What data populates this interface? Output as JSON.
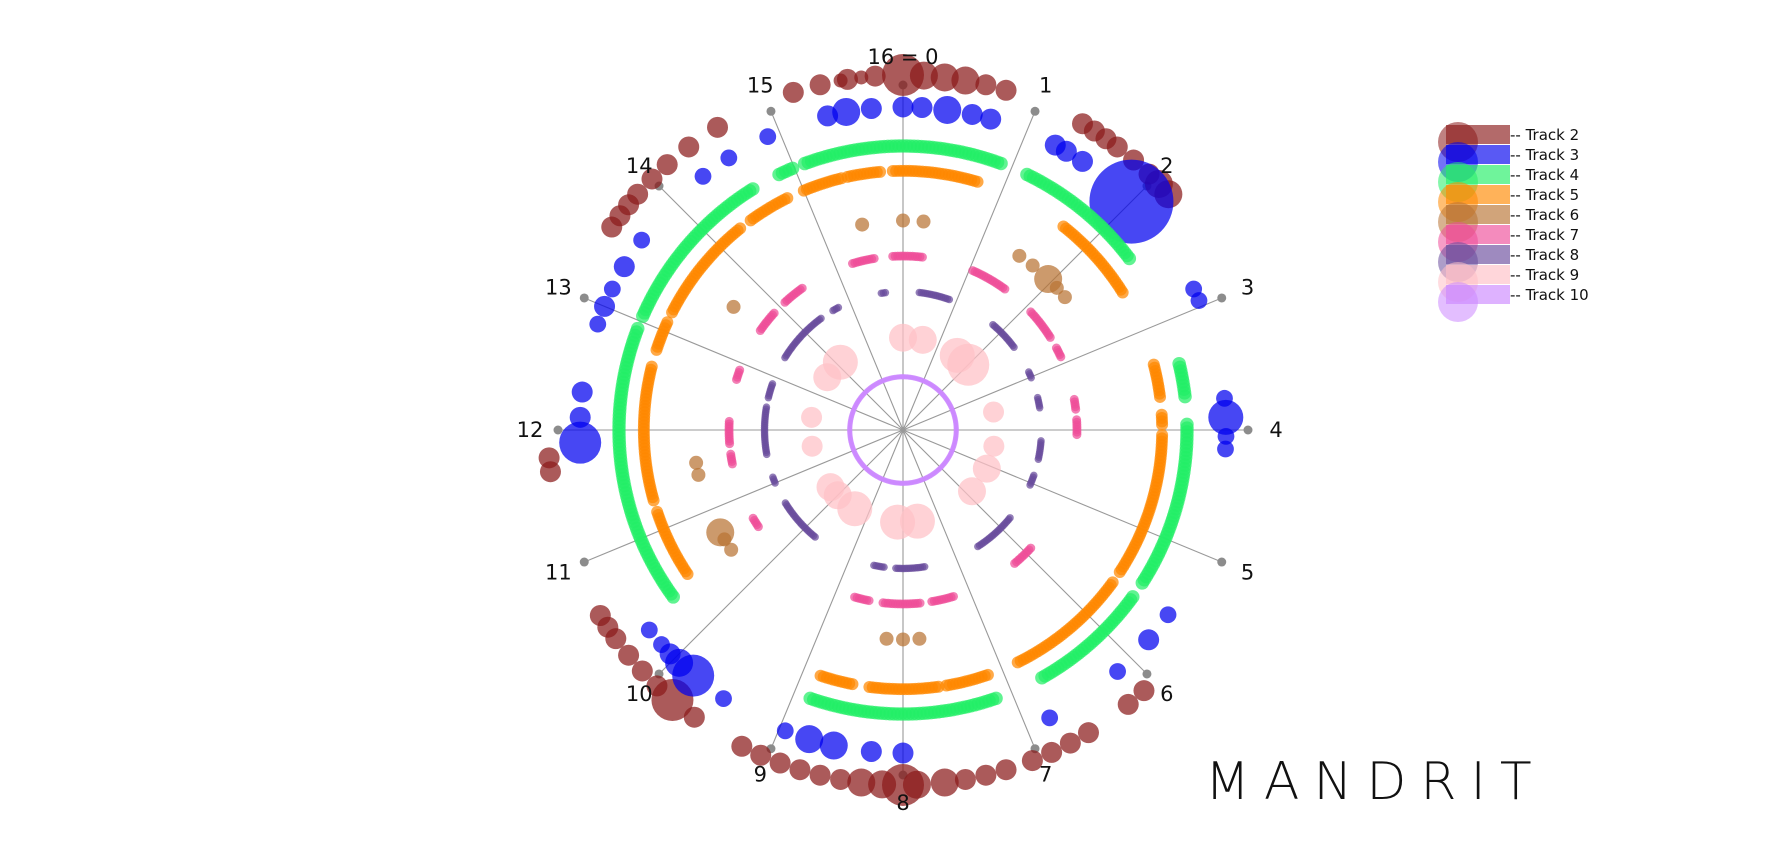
{
  "brand": "MANDRIT",
  "colors": {
    "background": "#ffffff",
    "spoke": "#999999",
    "spoke_dot": "#8c8c8c"
  },
  "chart_data": {
    "type": "scatter",
    "coordinate_system": "polar",
    "divisions": 16,
    "spoke_labels": [
      "16 = 0",
      "1",
      "2",
      "3",
      "4",
      "5",
      "6",
      "7",
      "8",
      "9",
      "10",
      "11",
      "12",
      "13",
      "14",
      "15"
    ],
    "legend_placement": "top-right",
    "series": [
      {
        "name": "-- Track 2",
        "color": "#8b1a1a",
        "ring": 10.0,
        "points": [
          [
            0,
            3
          ],
          [
            0.15,
            2
          ],
          [
            0.3,
            2
          ],
          [
            0.45,
            2
          ],
          [
            0.6,
            1.5
          ],
          [
            0.75,
            1.5
          ],
          [
            15.2,
            1.5
          ],
          [
            15.4,
            1.5
          ],
          [
            15.6,
            1.5
          ],
          [
            15.8,
            1.5
          ],
          [
            15.55,
            1
          ],
          [
            15.7,
            1
          ],
          [
            1.35,
            1.5
          ],
          [
            1.45,
            1.5
          ],
          [
            1.55,
            1.5
          ],
          [
            1.65,
            1.5
          ],
          [
            1.8,
            1.5
          ],
          [
            1.95,
            1.5
          ],
          [
            2.05,
            2
          ],
          [
            2.15,
            2
          ],
          [
            13.55,
            1.5
          ],
          [
            13.65,
            1.5
          ],
          [
            13.75,
            1.5
          ],
          [
            13.85,
            1.5
          ],
          [
            14.0,
            1.5
          ],
          [
            14.15,
            1.5
          ],
          [
            14.35,
            1.5
          ],
          [
            14.6,
            1.5
          ],
          [
            11.7,
            1.5
          ],
          [
            11.8,
            1.5
          ],
          [
            9.6,
            1.5
          ],
          [
            9.8,
            3
          ],
          [
            9.95,
            1.5
          ],
          [
            10.1,
            1.5
          ],
          [
            10.25,
            1.5
          ],
          [
            10.4,
            1.5
          ],
          [
            10.5,
            1.5
          ],
          [
            10.6,
            1.5
          ],
          [
            8,
            3
          ],
          [
            8.15,
            2
          ],
          [
            8.3,
            2
          ],
          [
            8.45,
            1.5
          ],
          [
            8.6,
            1.5
          ],
          [
            8.75,
            1.5
          ],
          [
            8.9,
            1.5
          ],
          [
            9.05,
            1.5
          ],
          [
            9.2,
            1.5
          ],
          [
            7.9,
            2
          ],
          [
            7.7,
            2
          ],
          [
            7.55,
            1.5
          ],
          [
            7.4,
            1.5
          ],
          [
            7.25,
            1.5
          ],
          [
            6.6,
            1.5
          ],
          [
            6.75,
            1.5
          ],
          [
            6.9,
            1.5
          ],
          [
            7.05,
            1.5
          ],
          [
            6.1,
            1.5
          ],
          [
            6.25,
            1.5
          ]
        ]
      },
      {
        "name": "-- Track 3",
        "color": "#0000ee",
        "ring": 9.1,
        "points": [
          [
            0,
            1.5
          ],
          [
            0.15,
            1.5
          ],
          [
            0.35,
            2
          ],
          [
            0.55,
            1.5
          ],
          [
            0.7,
            1.5
          ],
          [
            15.75,
            1.5
          ],
          [
            15.55,
            2
          ],
          [
            15.4,
            1.5
          ],
          [
            1.25,
            1.5
          ],
          [
            1.35,
            1.5
          ],
          [
            1.5,
            1.5
          ],
          [
            2.0,
            6
          ],
          [
            2.85,
            1.2
          ],
          [
            2.95,
            1.2
          ],
          [
            3.75,
            1.2
          ],
          [
            3.9,
            2.5
          ],
          [
            4.05,
            1.2
          ],
          [
            4.15,
            1.2
          ],
          [
            11.9,
            3
          ],
          [
            12.1,
            1.5
          ],
          [
            12.3,
            1.5
          ],
          [
            12.85,
            1.2
          ],
          [
            13.0,
            1.5
          ],
          [
            13.15,
            1.2
          ],
          [
            13.35,
            1.5
          ],
          [
            13.6,
            1.2
          ],
          [
            14.3,
            1.2
          ],
          [
            14.55,
            1.2
          ],
          [
            14.9,
            1.2
          ],
          [
            10.3,
            1.2
          ],
          [
            10.15,
            1.2
          ],
          [
            10.05,
            1.5
          ],
          [
            9.95,
            2
          ],
          [
            9.8,
            3
          ],
          [
            9.5,
            1.2
          ],
          [
            8.25,
            1.5
          ],
          [
            8.0,
            1.5
          ],
          [
            8.55,
            2
          ],
          [
            8.75,
            2
          ],
          [
            8.95,
            1.2
          ],
          [
            6.15,
            1.2
          ],
          [
            5.8,
            1.5
          ],
          [
            5.55,
            1.2
          ],
          [
            6.8,
            1.2
          ]
        ]
      },
      {
        "name": "-- Track 4",
        "color": "#22ee66",
        "ring": 8.0,
        "points": [],
        "arcs": [
          [
            15.1,
            16.9,
            0.9
          ],
          [
            1.15,
            2.35,
            0.9
          ],
          [
            3.4,
            3.7,
            0.9
          ],
          [
            3.95,
            5.45,
            0.9
          ],
          [
            5.6,
            6.7,
            0.9
          ],
          [
            7.15,
            8.85,
            0.9
          ],
          [
            10.4,
            12.95,
            0.9
          ],
          [
            13.05,
            14.6,
            0.9
          ],
          [
            14.85,
            15.0,
            0.9
          ]
        ]
      },
      {
        "name": "-- Track 5",
        "color": "#ff8800",
        "ring": 7.3,
        "points": [],
        "arcs": [
          [
            15.0,
            15.4,
            0.8
          ],
          [
            15.45,
            15.8,
            0.8
          ],
          [
            15.9,
            16.75,
            0.8
          ],
          [
            1.7,
            2.6,
            0.8
          ],
          [
            3.35,
            3.7,
            0.8
          ],
          [
            3.85,
            3.95,
            0.8
          ],
          [
            4.05,
            5.5,
            0.8
          ],
          [
            5.6,
            6.85,
            0.8
          ],
          [
            7.15,
            7.6,
            0.8
          ],
          [
            7.65,
            8.35,
            0.8
          ],
          [
            8.5,
            8.85,
            0.8
          ],
          [
            10.5,
            11.2,
            0.8
          ],
          [
            11.3,
            12.65,
            0.8
          ],
          [
            12.8,
            13.1,
            0.8
          ],
          [
            13.2,
            14.3,
            0.8
          ],
          [
            14.4,
            14.85,
            0.8
          ]
        ]
      },
      {
        "name": "-- Track 6",
        "color": "#b87333",
        "ring": 5.9,
        "points": [
          [
            0,
            1
          ],
          [
            0.25,
            1
          ],
          [
            15.5,
            1
          ],
          [
            1.5,
            1
          ],
          [
            1.7,
            1
          ],
          [
            1.95,
            2
          ],
          [
            2.1,
            1
          ],
          [
            2.25,
            1
          ],
          [
            7.8,
            1
          ],
          [
            8.0,
            1
          ],
          [
            8.2,
            1
          ],
          [
            10.45,
            1
          ],
          [
            10.6,
            1
          ],
          [
            10.7,
            2
          ],
          [
            11.45,
            1
          ],
          [
            11.6,
            1
          ],
          [
            13.6,
            1
          ]
        ]
      },
      {
        "name": "-- Track 7",
        "color": "#ee4d99",
        "ring": 4.9,
        "points": [],
        "arcs": [
          [
            15.25,
            15.6,
            0.6
          ],
          [
            15.85,
            16.3,
            0.6
          ],
          [
            1.05,
            1.6,
            0.6
          ],
          [
            2.1,
            2.6,
            0.6
          ],
          [
            2.75,
            2.9,
            0.6
          ],
          [
            3.55,
            3.7,
            0.6
          ],
          [
            3.85,
            4.1,
            0.6
          ],
          [
            5.9,
            6.25,
            0.6
          ],
          [
            7.25,
            7.6,
            0.6
          ],
          [
            7.75,
            8.3,
            0.6
          ],
          [
            8.5,
            8.75,
            0.6
          ],
          [
            10.5,
            10.65,
            0.6
          ],
          [
            11.5,
            11.65,
            0.6
          ],
          [
            11.8,
            12.15,
            0.6
          ],
          [
            12.75,
            12.9,
            0.6
          ],
          [
            13.55,
            13.9,
            0.6
          ],
          [
            14.1,
            14.45,
            0.6
          ]
        ]
      },
      {
        "name": "-- Track 8",
        "color": "#6a4c9c",
        "ring": 3.9,
        "points": [],
        "arcs": [
          [
            15.6,
            15.7,
            0.5
          ],
          [
            0.3,
            0.9,
            0.5
          ],
          [
            1.8,
            2.4,
            0.5
          ],
          [
            2.9,
            3.05,
            0.5
          ],
          [
            3.4,
            3.6,
            0.5
          ],
          [
            4.2,
            4.55,
            0.5
          ],
          [
            4.85,
            5.05,
            0.5
          ],
          [
            5.75,
            6.55,
            0.5
          ],
          [
            7.6,
            8.15,
            0.5
          ],
          [
            8.35,
            8.55,
            0.5
          ],
          [
            9.75,
            10.6,
            0.5
          ],
          [
            11.0,
            11.15,
            0.5
          ],
          [
            11.55,
            12.45,
            0.5
          ],
          [
            12.6,
            12.9,
            0.5
          ],
          [
            13.4,
            14.4,
            0.5
          ],
          [
            14.65,
            14.8,
            0.5
          ]
        ]
      },
      {
        "name": "-- Track 9",
        "color": "#ffc0c6",
        "ring": 2.6,
        "points": [
          [
            0,
            2
          ],
          [
            0.55,
            2
          ],
          [
            1.6,
            2.5
          ],
          [
            2.0,
            3
          ],
          [
            3.5,
            1.5
          ],
          [
            4.45,
            1.5
          ],
          [
            5.1,
            2
          ],
          [
            5.85,
            2
          ],
          [
            7.6,
            2.5
          ],
          [
            8.15,
            2.5
          ],
          [
            9.4,
            2.5
          ],
          [
            10.0,
            2
          ],
          [
            10.3,
            2
          ],
          [
            11.55,
            1.5
          ],
          [
            12.35,
            1.5
          ],
          [
            13.55,
            2
          ],
          [
            14.1,
            2.5
          ]
        ]
      },
      {
        "name": "-- Track 10",
        "color": "#cc88ff",
        "ring": 1.5,
        "points": [],
        "arcs": [
          [
            0.0,
            16.0,
            0.35
          ]
        ]
      }
    ]
  }
}
